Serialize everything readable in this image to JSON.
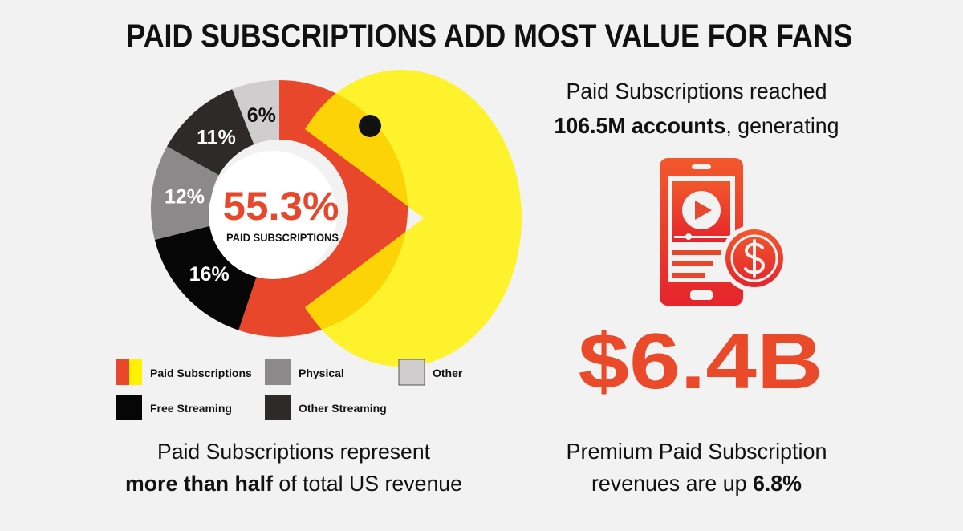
{
  "header": {
    "title": "PAID SUBSCRIPTIONS ADD MOST VALUE FOR FANS"
  },
  "chart_data": {
    "type": "pie",
    "categories": [
      "Paid Subscriptions",
      "Free Streaming",
      "Physical",
      "Other Streaming",
      "Other"
    ],
    "values": [
      55.3,
      16,
      12,
      11,
      6
    ],
    "value_labels": [
      "55.3%",
      "16%",
      "12%",
      "11%",
      "6%"
    ],
    "colors": [
      "#e9472b",
      "#060606",
      "#8b8989",
      "#2e2a2a",
      "#cfcdcd"
    ],
    "center_label": "PAID SUBSCRIPTIONS"
  },
  "left_caption": {
    "line1": "Paid Subscriptions represent",
    "line2_bold": "more than half",
    "line2_rest": " of total US revenue"
  },
  "right_panel": {
    "line1": "Paid Subscriptions reached",
    "line2_bold": "106.5M accounts",
    "line2_rest": ", generating",
    "amount": "$6.4B",
    "line3": "Premium Paid Subscription",
    "line4": "revenues are up ",
    "line4_bold": "6.8%"
  }
}
